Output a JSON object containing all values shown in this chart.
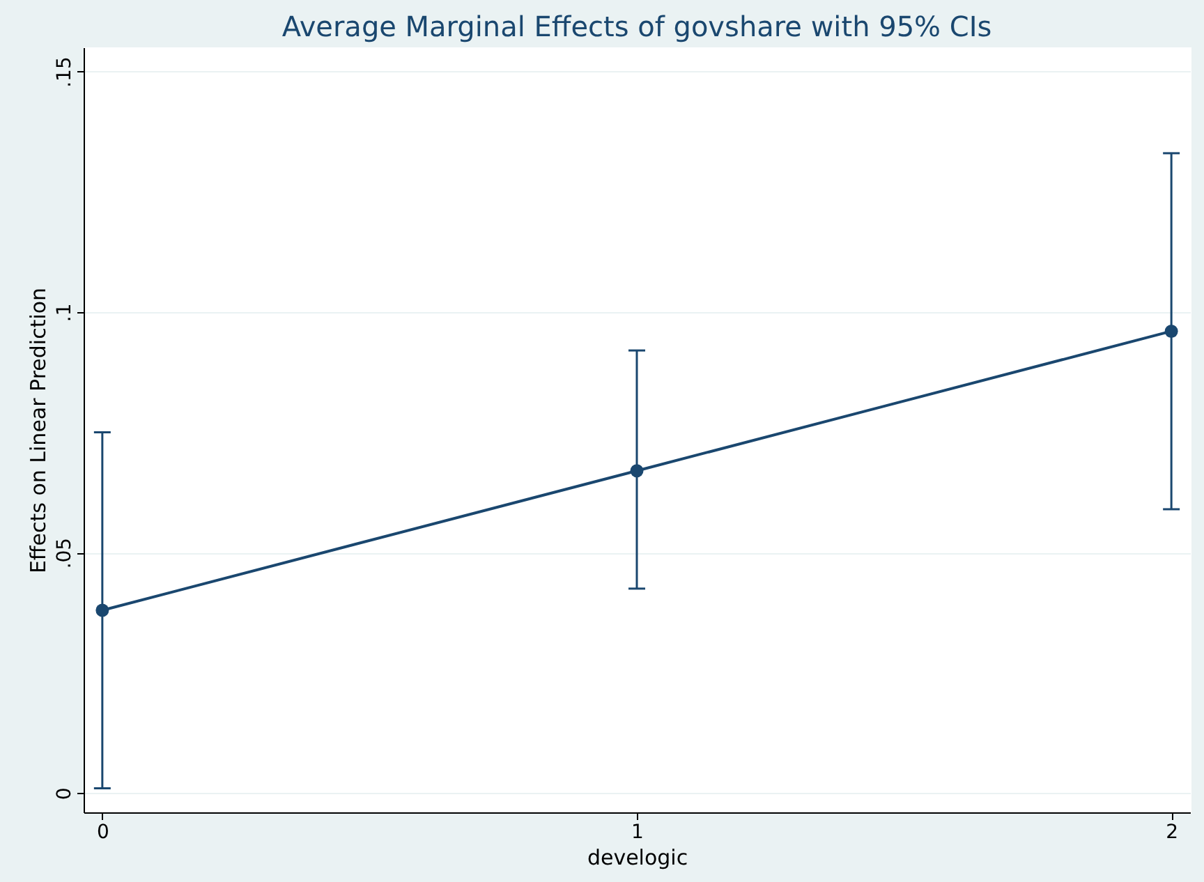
{
  "chart_data": {
    "type": "line",
    "title": "Average Marginal Effects of govshare with 95% CIs",
    "xlabel": "develogic",
    "ylabel": "Effects on Linear Prediction",
    "x": [
      0,
      1,
      2
    ],
    "series": [
      {
        "color": "#1a476f",
        "values": [
          0.038,
          0.067,
          0.096
        ],
        "errors": [
          [
            0.001,
            0.075
          ],
          [
            0.0425,
            0.092
          ],
          [
            0.059,
            0.133
          ]
        ]
      }
    ],
    "xlim": [
      -0.035,
      2.035
    ],
    "xticks": [
      0,
      1,
      2
    ],
    "ylim": [
      -0.004,
      0.155
    ],
    "yticks": [
      {
        "value": 0,
        "label": "0"
      },
      {
        "value": 0.05,
        "label": ".05"
      },
      {
        "value": 0.1,
        "label": ".1"
      },
      {
        "value": 0.15,
        "label": ".15"
      }
    ],
    "grid": "y",
    "marker": "circle",
    "line_style": "solid"
  }
}
